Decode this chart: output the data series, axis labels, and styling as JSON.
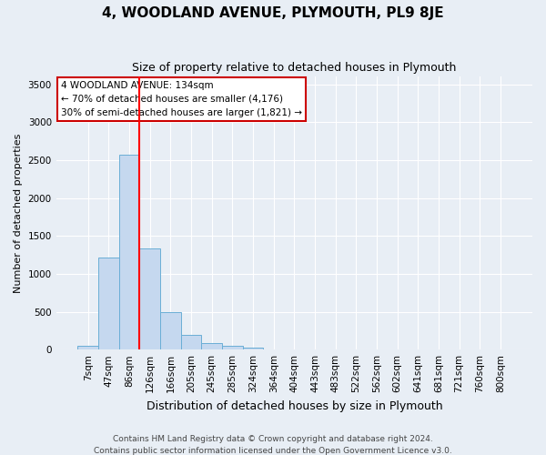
{
  "title": "4, WOODLAND AVENUE, PLYMOUTH, PL9 8JE",
  "subtitle": "Size of property relative to detached houses in Plymouth",
  "xlabel": "Distribution of detached houses by size in Plymouth",
  "ylabel": "Number of detached properties",
  "footer_line1": "Contains HM Land Registry data © Crown copyright and database right 2024.",
  "footer_line2": "Contains public sector information licensed under the Open Government Licence v3.0.",
  "bar_labels": [
    "7sqm",
    "47sqm",
    "86sqm",
    "126sqm",
    "166sqm",
    "205sqm",
    "245sqm",
    "285sqm",
    "324sqm",
    "364sqm",
    "404sqm",
    "443sqm",
    "483sqm",
    "522sqm",
    "562sqm",
    "602sqm",
    "641sqm",
    "681sqm",
    "721sqm",
    "760sqm",
    "800sqm"
  ],
  "bar_values": [
    50,
    1220,
    2570,
    1330,
    500,
    190,
    90,
    45,
    30,
    0,
    0,
    0,
    0,
    0,
    0,
    0,
    0,
    0,
    0,
    0,
    0
  ],
  "bar_color": "#c5d8ef",
  "bar_edge_color": "#6aaed6",
  "red_line_x": 2.5,
  "annotation_title": "4 WOODLAND AVENUE: 134sqm",
  "annotation_line1": "← 70% of detached houses are smaller (4,176)",
  "annotation_line2": "30% of semi-detached houses are larger (1,821) →",
  "ylim": [
    0,
    3600
  ],
  "yticks": [
    0,
    500,
    1000,
    1500,
    2000,
    2500,
    3000,
    3500
  ],
  "bg_color": "#e8eef5",
  "plot_bg_color": "#e8eef5",
  "grid_color": "#ffffff",
  "annotation_box_edge_color": "#cc0000",
  "title_fontsize": 11,
  "subtitle_fontsize": 9,
  "ylabel_fontsize": 8,
  "xlabel_fontsize": 9,
  "tick_fontsize": 7.5,
  "footer_fontsize": 6.5
}
